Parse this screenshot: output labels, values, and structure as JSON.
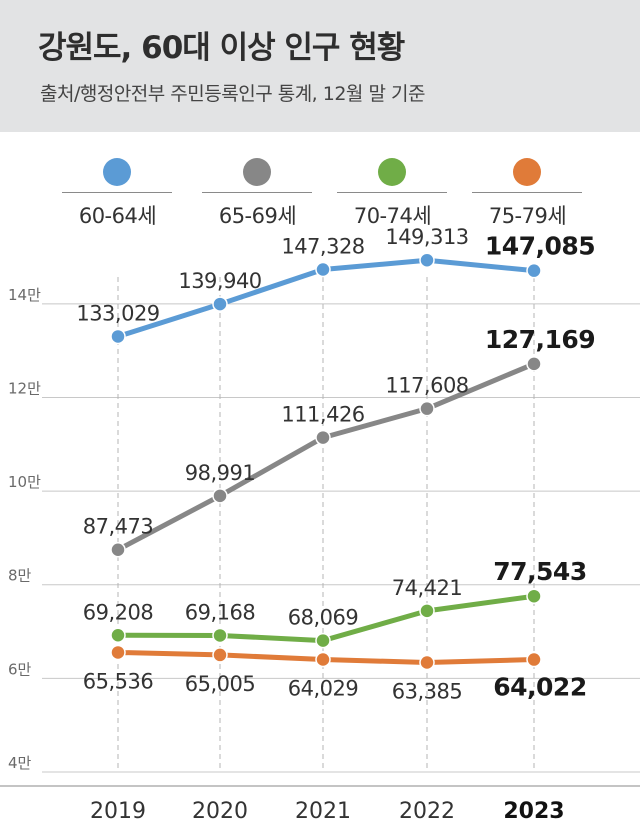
{
  "header": {
    "title": "강원도, 60대 이상 인구 현황",
    "subtitle": "출처/행정안전부 주민등록인구 통계, 12월 말 기준"
  },
  "chart_data": {
    "type": "line",
    "title": "강원도, 60대 이상 인구 현황",
    "subtitle": "출처/행정안전부 주민등록인구 통계, 12월 말 기준",
    "x": [
      "2019",
      "2020",
      "2021",
      "2022",
      "2023"
    ],
    "highlight_x": "2023",
    "ylim": [
      40000,
      150000
    ],
    "y_ticks": [
      {
        "value": 40000,
        "label": "4만"
      },
      {
        "value": 60000,
        "label": "6만"
      },
      {
        "value": 80000,
        "label": "8만"
      },
      {
        "value": 100000,
        "label": "10만"
      },
      {
        "value": 120000,
        "label": "12만"
      },
      {
        "value": 140000,
        "label": "14만"
      }
    ],
    "grid": true,
    "legend_position": "top",
    "series": [
      {
        "name": "60-64세",
        "color": "#5b9bd5",
        "values": [
          133029,
          139940,
          147328,
          149313,
          147085
        ],
        "labels": [
          "133,029",
          "139,940",
          "147,328",
          "149,313",
          "147,085"
        ],
        "label_side": "above"
      },
      {
        "name": "65-69세",
        "color": "#878787",
        "values": [
          87473,
          98991,
          111426,
          117608,
          127169
        ],
        "labels": [
          "87,473",
          "98,991",
          "111,426",
          "117,608",
          "127,169"
        ],
        "label_side": "above"
      },
      {
        "name": "70-74세",
        "color": "#70ad47",
        "values": [
          69208,
          69168,
          68069,
          74421,
          77543
        ],
        "labels": [
          "69,208",
          "69,168",
          "68,069",
          "74,421",
          "77,543"
        ],
        "label_side": "above"
      },
      {
        "name": "75-79세",
        "color": "#e07b39",
        "values": [
          65536,
          65005,
          64029,
          63385,
          64022
        ],
        "labels": [
          "65,536",
          "65,005",
          "64,029",
          "63,385",
          "64,022"
        ],
        "label_side": "below"
      }
    ]
  }
}
